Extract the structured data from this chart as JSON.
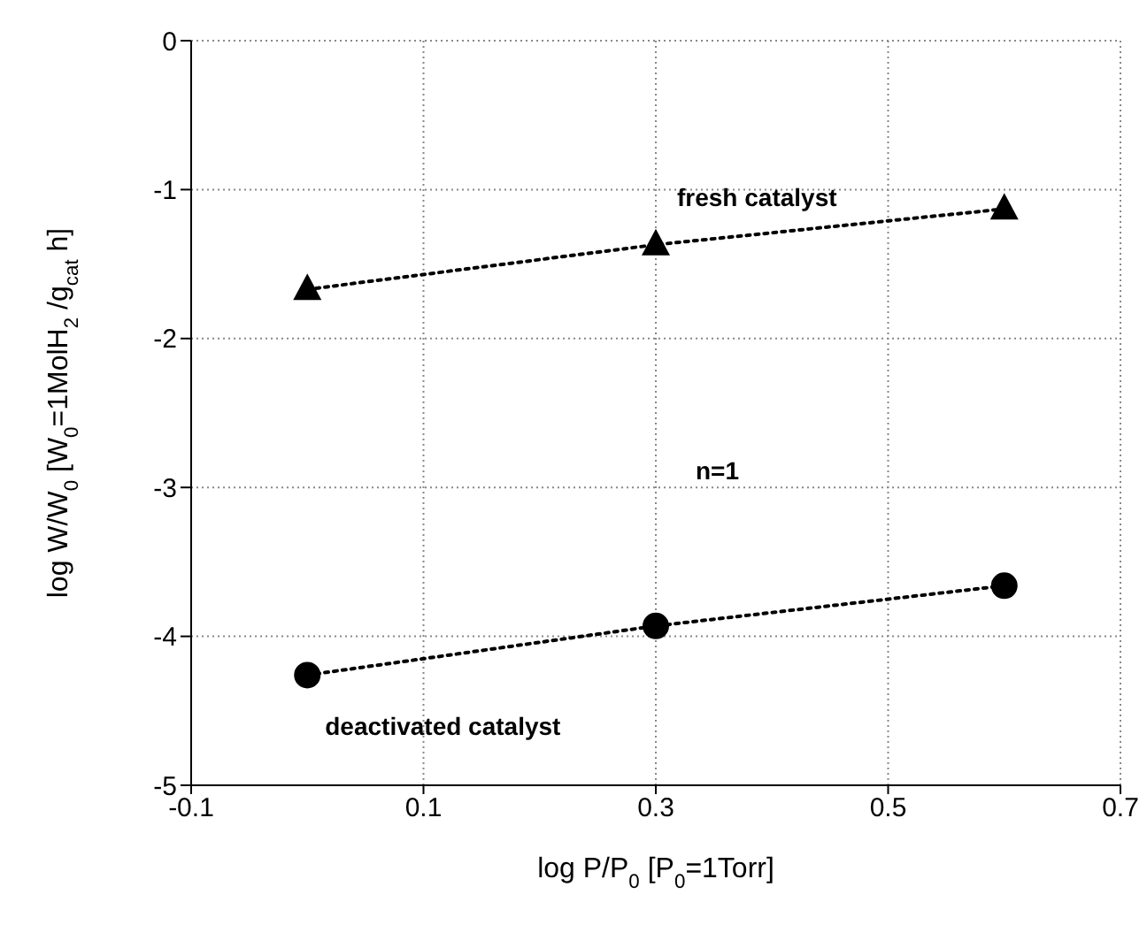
{
  "chart_data": {
    "type": "line",
    "xlabel": "log P/P$_{0}$ [P$_{0}$=1Torr]",
    "ylabel": "log W/W$_{0}$ [W$_{0}$=1MolH$_{2}$ /g$_{cat}$ h]",
    "xlim": [
      -0.1,
      0.7
    ],
    "xticks": [
      -0.1,
      0.1,
      0.3,
      0.5,
      0.7
    ],
    "ylim": [
      -5,
      0
    ],
    "yticks": [
      -5,
      -4,
      -3,
      -2,
      -1,
      0
    ],
    "grid": true,
    "line_style": "dotted",
    "series": [
      {
        "name": "fresh catalyst",
        "color": "#000000",
        "marker": "triangle",
        "x": [
          0,
          0.3,
          0.6
        ],
        "values": [
          -1.67,
          -1.37,
          -1.13
        ]
      },
      {
        "name": "deactivated catalyst",
        "color": "#000000",
        "marker": "circle",
        "x": [
          0,
          0.3,
          0.6
        ],
        "values": [
          -4.26,
          -3.93,
          -3.66
        ]
      }
    ],
    "annotations": [
      "n=1"
    ]
  }
}
